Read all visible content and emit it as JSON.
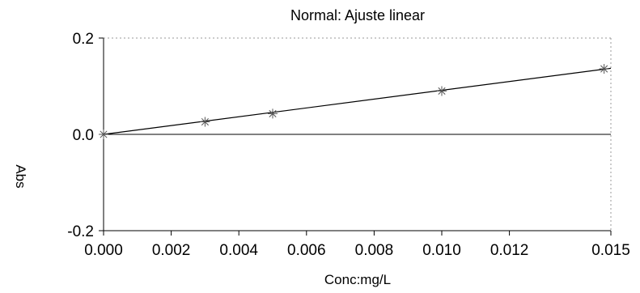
{
  "chart_data": {
    "type": "scatter",
    "title": "Normal: Ajuste linear",
    "xlabel": "Conc:mg/L",
    "ylabel": "Abs",
    "xlim": [
      0.0,
      0.015
    ],
    "ylim": [
      -0.2,
      0.2
    ],
    "x_ticks": [
      0.0,
      0.002,
      0.004,
      0.006,
      0.008,
      0.01,
      0.012,
      0.015
    ],
    "x_tick_labels": [
      "0.000",
      "0.002",
      "0.004",
      "0.006",
      "0.008",
      "0.010",
      "0.012",
      "0.015"
    ],
    "y_ticks": [
      -0.2,
      0.0,
      0.2
    ],
    "y_tick_labels": [
      "-0.2",
      "0.0",
      "0.2"
    ],
    "grid": false,
    "series": [
      {
        "marker": "asterisk",
        "x": [
          0.0,
          0.003,
          0.005,
          0.01,
          0.0148
        ],
        "y": [
          0.0,
          0.026,
          0.043,
          0.09,
          0.136
        ]
      }
    ],
    "fit_line": {
      "x": [
        0.0,
        0.015
      ],
      "y": [
        0.0,
        0.1372
      ]
    },
    "reference_line_y": 0.0,
    "colors": {
      "axes": "#000000",
      "line": "#000000",
      "marker": "#555555",
      "background": "#ffffff"
    }
  }
}
